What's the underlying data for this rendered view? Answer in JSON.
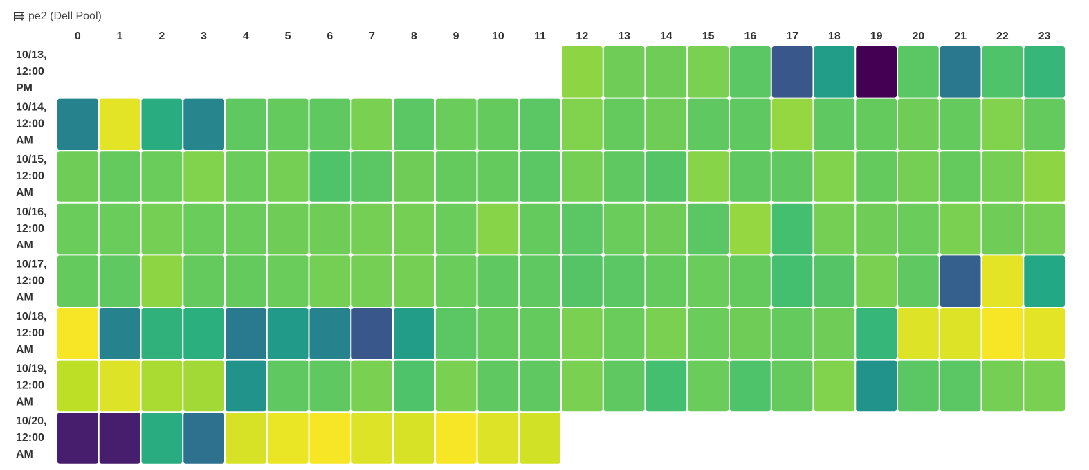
{
  "panel": {
    "title": "pe2 (Dell Pool)",
    "icon": "server-icon"
  },
  "chart_data": {
    "type": "heatmap",
    "title": "pe2 (Dell Pool)",
    "x": [
      "0",
      "1",
      "2",
      "3",
      "4",
      "5",
      "6",
      "7",
      "8",
      "9",
      "10",
      "11",
      "12",
      "13",
      "14",
      "15",
      "16",
      "17",
      "18",
      "19",
      "20",
      "21",
      "22",
      "23"
    ],
    "y": [
      [
        "10/13,",
        "12:00",
        "PM"
      ],
      [
        "10/14,",
        "12:00",
        "AM"
      ],
      [
        "10/15,",
        "12:00",
        "AM"
      ],
      [
        "10/16,",
        "12:00",
        "AM"
      ],
      [
        "10/17,",
        "12:00",
        "AM"
      ],
      [
        "10/18,",
        "12:00",
        "AM"
      ],
      [
        "10/19,",
        "12:00",
        "AM"
      ],
      [
        "10/20,",
        "12:00",
        "AM"
      ]
    ],
    "colorscale": "viridis",
    "zrange": [
      0,
      1
    ],
    "values": [
      [
        null,
        null,
        null,
        null,
        null,
        null,
        null,
        null,
        null,
        null,
        null,
        null,
        0.83,
        0.78,
        0.78,
        0.8,
        0.74,
        0.27,
        0.55,
        0.0,
        0.74,
        0.4,
        0.72,
        0.66
      ],
      [
        0.44,
        0.96,
        0.62,
        0.45,
        0.75,
        0.76,
        0.75,
        0.8,
        0.74,
        0.77,
        0.76,
        0.74,
        0.81,
        0.76,
        0.78,
        0.75,
        0.75,
        0.84,
        0.75,
        0.76,
        0.78,
        0.76,
        0.81,
        0.76
      ],
      [
        0.78,
        0.76,
        0.77,
        0.81,
        0.77,
        0.79,
        0.72,
        0.74,
        0.78,
        0.76,
        0.76,
        0.74,
        0.79,
        0.75,
        0.73,
        0.82,
        0.75,
        0.75,
        0.81,
        0.76,
        0.79,
        0.76,
        0.79,
        0.83
      ],
      [
        0.77,
        0.77,
        0.79,
        0.77,
        0.77,
        0.78,
        0.78,
        0.79,
        0.79,
        0.77,
        0.82,
        0.76,
        0.74,
        0.77,
        0.78,
        0.74,
        0.84,
        0.7,
        0.79,
        0.78,
        0.77,
        0.8,
        0.78,
        0.79
      ],
      [
        0.76,
        0.75,
        0.83,
        0.76,
        0.76,
        0.77,
        0.79,
        0.79,
        0.79,
        0.77,
        0.75,
        0.75,
        0.73,
        0.74,
        0.76,
        0.77,
        0.76,
        0.7,
        0.73,
        0.8,
        0.75,
        0.3,
        0.96,
        0.6
      ],
      [
        0.99,
        0.44,
        0.64,
        0.63,
        0.41,
        0.54,
        0.44,
        0.27,
        0.55,
        0.74,
        0.76,
        0.76,
        0.8,
        0.77,
        0.8,
        0.77,
        0.78,
        0.76,
        0.78,
        0.66,
        0.95,
        0.95,
        0.99,
        0.96
      ],
      [
        0.9,
        0.95,
        0.87,
        0.86,
        0.51,
        0.75,
        0.75,
        0.8,
        0.72,
        0.8,
        0.75,
        0.75,
        0.8,
        0.75,
        0.7,
        0.77,
        0.72,
        0.76,
        0.81,
        0.51,
        0.74,
        0.74,
        0.79,
        0.8
      ],
      [
        0.08,
        0.08,
        0.62,
        0.37,
        0.94,
        0.97,
        0.99,
        0.95,
        0.94,
        0.99,
        0.95,
        0.93,
        null,
        null,
        null,
        null,
        null,
        null,
        null,
        null,
        null,
        null,
        null,
        null
      ]
    ]
  }
}
